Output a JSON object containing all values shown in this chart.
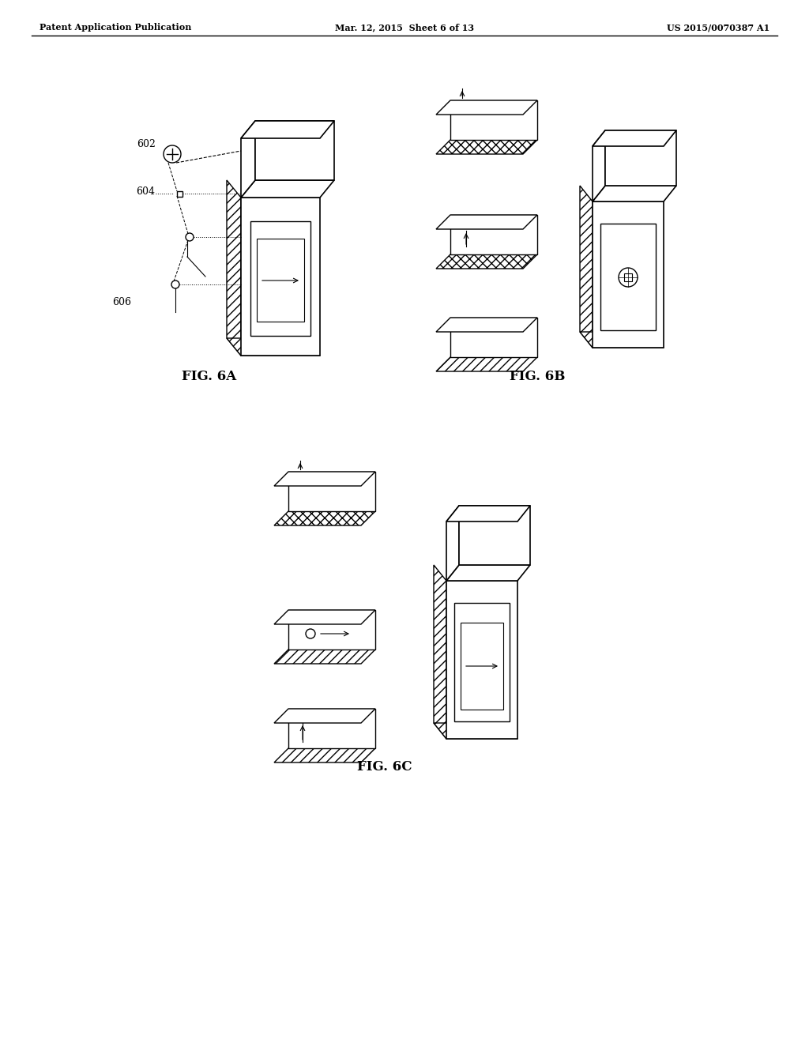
{
  "background_color": "#ffffff",
  "header_left": "Patent Application Publication",
  "header_center": "Mar. 12, 2015  Sheet 6 of 13",
  "header_right": "US 2015/0070387 A1",
  "fig_labels": [
    "FIG. 6A",
    "FIG. 6B",
    "FIG. 6C"
  ],
  "label_602": "602",
  "label_604": "604",
  "label_606": "606"
}
